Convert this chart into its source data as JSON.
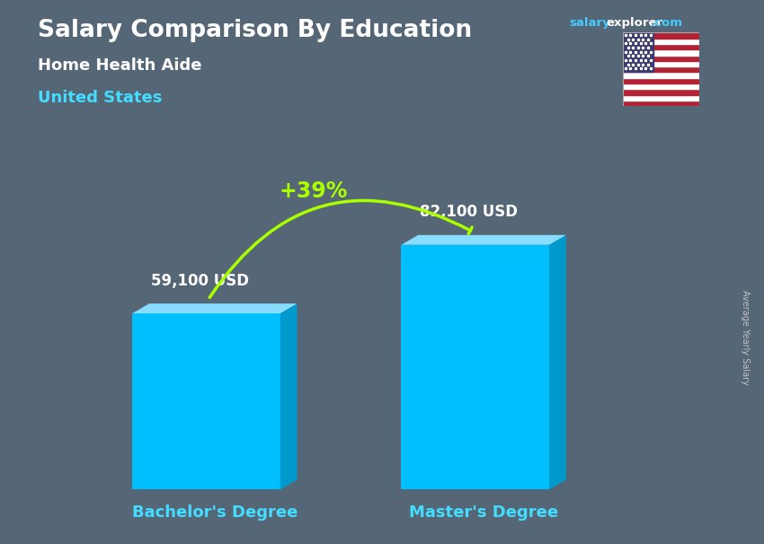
{
  "title": "Salary Comparison By Education",
  "subtitle_job": "Home Health Aide",
  "subtitle_location": "United States",
  "ylabel": "Average Yearly Salary",
  "categories": [
    "Bachelor's Degree",
    "Master's Degree"
  ],
  "values": [
    59100,
    82100
  ],
  "value_labels": [
    "59,100 USD",
    "82,100 USD"
  ],
  "pct_change": "+39%",
  "bar_color_main": "#00BFFF",
  "bar_color_side": "#0099CC",
  "bar_color_top": "#88DDFF",
  "background_color": "#556677",
  "overlay_color": "#3a4a58",
  "title_color": "#FFFFFF",
  "subtitle_job_color": "#FFFFFF",
  "subtitle_location_color": "#44DDFF",
  "value_label_color": "#FFFFFF",
  "category_label_color": "#44DDFF",
  "pct_color": "#AAFF00",
  "site_salary_color": "#44CCFF",
  "site_explorer_color": "#FFFFFF",
  "arrow_color": "#AAFF00",
  "ylabel_color": "#CCCCCC",
  "figsize": [
    8.5,
    6.06
  ],
  "dpi": 100
}
